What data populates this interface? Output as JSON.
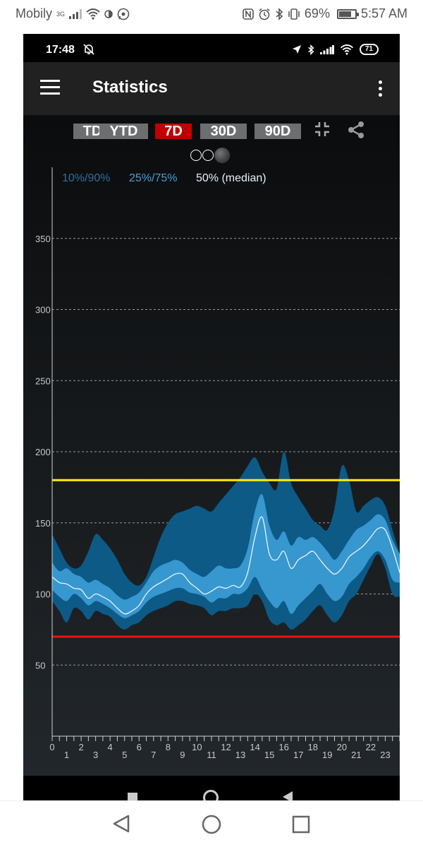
{
  "outer_status": {
    "carrier": "Mobily",
    "network_type": "3G",
    "battery_percent": "69%",
    "battery_level": 0.69,
    "time": "5:57 AM"
  },
  "inner_status": {
    "time": "17:48",
    "battery": "71"
  },
  "app_bar": {
    "title": "Statistics"
  },
  "range_buttons": [
    {
      "label": "TD",
      "active": false
    },
    {
      "label": "YTD",
      "active": false
    },
    {
      "label": "7D",
      "active": true
    },
    {
      "label": "30D",
      "active": false
    },
    {
      "label": "90D",
      "active": false
    }
  ],
  "page_indicator": {
    "count": 3,
    "active": 2
  },
  "chart_data": {
    "type": "area",
    "legend": [
      {
        "label": "10%/90%",
        "color": "#2f6f9f"
      },
      {
        "label": "25%/75%",
        "color": "#46a0d4"
      },
      {
        "label": "50% (median)",
        "color": "#e6f2fa"
      }
    ],
    "x_ticks": [
      "0",
      "1",
      "2",
      "3",
      "4",
      "5",
      "6",
      "7",
      "8",
      "9",
      "10",
      "11",
      "12",
      "13",
      "14",
      "15",
      "16",
      "17",
      "18",
      "19",
      "20",
      "21",
      "22",
      "23"
    ],
    "y_ticks": [
      "50",
      "100",
      "150",
      "200",
      "250",
      "300",
      "350"
    ],
    "xlim": [
      0,
      24
    ],
    "ylim": [
      0,
      400
    ],
    "grid": true,
    "target_high": {
      "value": 180,
      "color": "#ffee00"
    },
    "target_low": {
      "value": 70,
      "color": "#ee1111"
    },
    "colors": {
      "outer_band": "#0d5a87",
      "inner_band": "#3797cf",
      "median": "#e8f3fb"
    },
    "x": [
      0,
      0.5,
      1,
      1.5,
      2,
      2.5,
      3,
      3.5,
      4,
      4.5,
      5,
      5.5,
      6,
      6.5,
      7,
      7.5,
      8,
      8.5,
      9,
      9.5,
      10,
      10.5,
      11,
      11.5,
      12,
      12.5,
      13,
      13.5,
      14,
      14.5,
      15,
      15.5,
      16,
      16.5,
      17,
      17.5,
      18,
      18.5,
      19,
      19.5,
      20,
      20.5,
      21,
      21.5,
      22,
      22.5,
      23,
      23.5,
      24
    ],
    "p10": [
      95,
      88,
      80,
      90,
      88,
      82,
      88,
      86,
      84,
      78,
      75,
      78,
      80,
      85,
      88,
      90,
      92,
      95,
      95,
      93,
      92,
      90,
      85,
      88,
      88,
      90,
      90,
      92,
      100,
      95,
      82,
      78,
      80,
      75,
      78,
      82,
      88,
      92,
      85,
      80,
      85,
      95,
      100,
      110,
      120,
      128,
      118,
      100,
      98
    ],
    "p25": [
      103,
      98,
      95,
      100,
      97,
      92,
      95,
      93,
      90,
      86,
      83,
      85,
      88,
      94,
      98,
      100,
      102,
      104,
      104,
      101,
      100,
      98,
      94,
      97,
      97,
      100,
      100,
      104,
      112,
      103,
      95,
      90,
      95,
      86,
      92,
      97,
      102,
      107,
      100,
      95,
      98,
      107,
      112,
      118,
      126,
      130,
      124,
      110,
      108
    ],
    "p50": [
      112,
      108,
      107,
      104,
      103,
      97,
      100,
      98,
      95,
      90,
      86,
      88,
      92,
      100,
      105,
      108,
      111,
      114,
      114,
      108,
      104,
      100,
      102,
      105,
      104,
      106,
      105,
      115,
      140,
      154,
      128,
      124,
      130,
      118,
      124,
      127,
      130,
      124,
      118,
      114,
      118,
      126,
      130,
      134,
      140,
      146,
      145,
      132,
      115
    ],
    "p75": [
      122,
      116,
      118,
      114,
      112,
      108,
      110,
      107,
      104,
      99,
      96,
      98,
      101,
      108,
      116,
      120,
      122,
      124,
      122,
      117,
      114,
      112,
      116,
      120,
      118,
      118,
      120,
      132,
      158,
      170,
      148,
      138,
      144,
      134,
      140,
      138,
      140,
      136,
      130,
      124,
      130,
      138,
      145,
      148,
      152,
      156,
      152,
      138,
      128
    ],
    "p90": [
      142,
      132,
      122,
      118,
      120,
      130,
      142,
      138,
      132,
      124,
      114,
      108,
      106,
      112,
      126,
      140,
      150,
      156,
      158,
      160,
      162,
      160,
      158,
      164,
      170,
      176,
      182,
      190,
      196,
      186,
      178,
      174,
      200,
      178,
      168,
      160,
      152,
      148,
      145,
      160,
      190,
      180,
      158,
      162,
      166,
      168,
      162,
      145,
      128
    ]
  }
}
